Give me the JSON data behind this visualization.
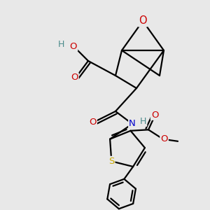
{
  "bg_color": "#e8e8e8",
  "atom_colors": {
    "C": "#000000",
    "H": "#4a8a8a",
    "O": "#cc0000",
    "N": "#0000cc",
    "S": "#ccaa00"
  },
  "bond_color": "#000000",
  "bond_width": 1.6,
  "font_size": 9.5
}
